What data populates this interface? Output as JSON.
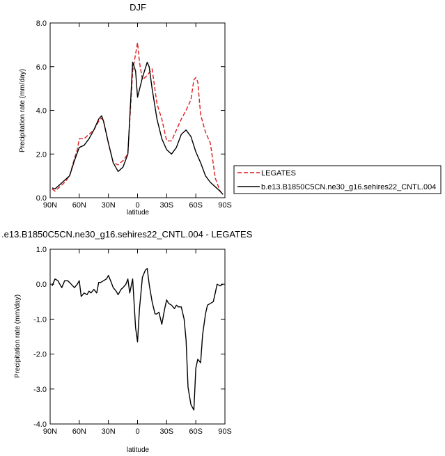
{
  "chart_data": [
    {
      "type": "line",
      "title": "DJF",
      "xlabel": "latitude",
      "ylabel": "Precipitation rate (mm/day)",
      "xlim": [
        90,
        -90
      ],
      "ylim": [
        0,
        8
      ],
      "xticks": [
        90,
        60,
        30,
        0,
        -30,
        -60,
        -90
      ],
      "xtick_labels": [
        "90N",
        "60N",
        "30N",
        "0",
        "30S",
        "60S",
        "90S"
      ],
      "yticks": [
        0,
        2,
        4,
        6,
        8
      ],
      "ytick_labels": [
        "0.0",
        "2.0",
        "4.0",
        "6.0",
        "8.0"
      ],
      "legend_position": "right",
      "series": [
        {
          "name": "LEGATES",
          "color": "#e0191b",
          "dash": "dashed",
          "x": [
            88,
            85,
            80,
            75,
            70,
            65,
            62,
            60,
            55,
            50,
            45,
            40,
            37,
            35,
            30,
            25,
            20,
            15,
            10,
            5,
            0,
            -2,
            -5,
            -10,
            -15,
            -20,
            -25,
            -30,
            -35,
            -40,
            -45,
            -50,
            -55,
            -58,
            -60,
            -62,
            -65,
            -70,
            -75,
            -80,
            -85,
            -88
          ],
          "y": [
            0.4,
            0.3,
            0.5,
            0.7,
            1.0,
            1.8,
            2.2,
            2.7,
            2.7,
            2.9,
            3.1,
            3.5,
            3.65,
            3.5,
            2.5,
            1.6,
            1.5,
            1.7,
            2.0,
            5.8,
            7.1,
            6.2,
            5.4,
            5.6,
            5.9,
            4.3,
            3.6,
            2.6,
            2.6,
            3.1,
            3.6,
            4.0,
            4.5,
            5.4,
            5.5,
            5.3,
            3.8,
            3.0,
            2.5,
            0.9,
            0.3,
            0.15
          ]
        },
        {
          "name": "b.e13.B1850C5CN.ne30_g16.sehires22_CNTL.004",
          "color": "#000000",
          "dash": "solid",
          "x": [
            88,
            85,
            80,
            75,
            70,
            65,
            60,
            55,
            50,
            45,
            40,
            37,
            35,
            30,
            25,
            20,
            15,
            10,
            5,
            2,
            0,
            -5,
            -10,
            -12,
            -15,
            -20,
            -25,
            -30,
            -35,
            -40,
            -45,
            -50,
            -55,
            -60,
            -65,
            -70,
            -75,
            -80,
            -85,
            -88
          ],
          "y": [
            0.45,
            0.4,
            0.6,
            0.8,
            1.0,
            1.7,
            2.3,
            2.4,
            2.7,
            3.1,
            3.6,
            3.75,
            3.5,
            2.5,
            1.6,
            1.2,
            1.4,
            2.0,
            6.2,
            5.8,
            4.6,
            5.5,
            6.2,
            6.0,
            5.0,
            3.6,
            2.7,
            2.2,
            2.0,
            2.3,
            2.9,
            3.1,
            2.8,
            2.1,
            1.6,
            1.0,
            0.7,
            0.5,
            0.3,
            0.15
          ]
        }
      ]
    },
    {
      "type": "line",
      "title": ".e13.B1850C5CN.ne30_g16.sehires22_CNTL.004 - LEGATES",
      "xlabel": "latitude",
      "ylabel": "Precipitation rate (mm/day)",
      "xlim": [
        90,
        -90
      ],
      "ylim": [
        -4,
        1
      ],
      "xticks": [
        90,
        60,
        30,
        0,
        -30,
        -60,
        -90
      ],
      "xtick_labels": [
        "90N",
        "60N",
        "30N",
        "0",
        "30S",
        "60S",
        "90S"
      ],
      "yticks": [
        -4,
        -3,
        -2,
        -1,
        0,
        1
      ],
      "ytick_labels": [
        "-4.0",
        "-3.0",
        "-2.0",
        "-1.0",
        "0.0",
        "1.0"
      ],
      "series": [
        {
          "name": "",
          "color": "#000000",
          "dash": "solid",
          "x": [
            88,
            85,
            82,
            80,
            78,
            75,
            72,
            70,
            65,
            62,
            60,
            58,
            55,
            52,
            50,
            48,
            45,
            42,
            40,
            38,
            35,
            32,
            30,
            27,
            25,
            22,
            20,
            17,
            15,
            12,
            10,
            8,
            5,
            2,
            0,
            -2,
            -5,
            -8,
            -10,
            -12,
            -15,
            -18,
            -20,
            -22,
            -25,
            -28,
            -30,
            -32,
            -35,
            -38,
            -40,
            -42,
            -45,
            -48,
            -50,
            -52,
            -55,
            -58,
            -60,
            -62,
            -65,
            -67,
            -70,
            -72,
            -75,
            -78,
            -80,
            -82,
            -85,
            -88
          ],
          "y": [
            -0.05,
            0.15,
            0.1,
            0.0,
            -0.1,
            0.1,
            0.1,
            0.05,
            -0.1,
            0.0,
            0.1,
            -0.35,
            -0.25,
            -0.3,
            -0.2,
            -0.25,
            -0.15,
            -0.25,
            0.05,
            0.05,
            0.1,
            0.15,
            0.25,
            0.05,
            -0.1,
            -0.2,
            -0.3,
            -0.15,
            -0.1,
            0.0,
            0.15,
            -0.25,
            0.15,
            -1.25,
            -1.65,
            -0.7,
            0.2,
            0.4,
            0.45,
            0.0,
            -0.5,
            -0.85,
            -0.85,
            -0.8,
            -1.15,
            -0.7,
            -0.45,
            -0.55,
            -0.6,
            -0.7,
            -0.6,
            -0.65,
            -0.65,
            -1.0,
            -1.6,
            -2.95,
            -3.45,
            -3.6,
            -2.4,
            -2.15,
            -2.25,
            -1.45,
            -0.85,
            -0.6,
            -0.55,
            -0.5,
            -0.25,
            0.0,
            -0.05,
            0.0
          ]
        }
      ]
    }
  ]
}
